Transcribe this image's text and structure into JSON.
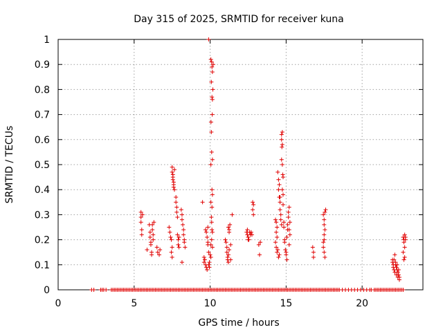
{
  "chart_data": {
    "type": "scatter",
    "title": "Day 315 of 2025, SRMTID for receiver kuna",
    "xlabel": "GPS time / hours",
    "ylabel": "SRMTID / TECUs",
    "xlim": [
      0,
      24
    ],
    "ylim": [
      0,
      1
    ],
    "xticks": [
      0,
      5,
      10,
      15,
      20
    ],
    "xtick_labels": [
      "0",
      "5",
      "10",
      "15",
      "20"
    ],
    "yticks": [
      0,
      0.1,
      0.2,
      0.3,
      0.4,
      0.5,
      0.6,
      0.7,
      0.8,
      0.9,
      1
    ],
    "ytick_labels": [
      "0",
      "0.1",
      "0.2",
      "0.3",
      "0.4",
      "0.5",
      "0.6",
      "0.7",
      "0.8",
      "0.9",
      "1"
    ],
    "grid": true,
    "marker": "+",
    "color": "#e00000",
    "zero_points_x": [
      2.2,
      2.35,
      2.8,
      2.9,
      3.0,
      3.15,
      3.5,
      3.6,
      3.7,
      3.8,
      3.9,
      4.0,
      4.1,
      4.2,
      4.3,
      4.4,
      4.5,
      4.6,
      4.7,
      4.8,
      4.9,
      5.0,
      5.1,
      5.2,
      5.3,
      5.4,
      5.5,
      5.6,
      5.7,
      5.8,
      5.9,
      6.0,
      6.1,
      6.2,
      6.3,
      6.4,
      6.5,
      6.6,
      6.7,
      6.8,
      6.9,
      7.0,
      7.1,
      7.2,
      7.3,
      7.4,
      7.5,
      7.6,
      7.7,
      7.8,
      7.9,
      8.0,
      8.1,
      8.2,
      8.3,
      8.4,
      8.5,
      8.6,
      8.7,
      8.8,
      8.9,
      9.0,
      9.1,
      9.2,
      9.3,
      9.4,
      9.5,
      9.6,
      9.7,
      9.8,
      9.9,
      10.0,
      10.1,
      10.2,
      10.3,
      10.4,
      10.5,
      10.6,
      10.7,
      10.8,
      10.9,
      11.0,
      11.1,
      11.2,
      11.3,
      11.4,
      11.5,
      11.6,
      11.7,
      11.8,
      11.9,
      12.0,
      12.1,
      12.2,
      12.3,
      12.4,
      12.5,
      12.6,
      12.7,
      12.8,
      12.9,
      13.0,
      13.1,
      13.2,
      13.3,
      13.4,
      13.5,
      13.6,
      13.7,
      13.8,
      13.9,
      14.0,
      14.1,
      14.2,
      14.3,
      14.4,
      14.5,
      14.6,
      14.7,
      14.8,
      14.9,
      15.0,
      15.1,
      15.2,
      15.3,
      15.4,
      15.5,
      15.6,
      15.7,
      15.8,
      15.9,
      16.0,
      16.1,
      16.2,
      16.3,
      16.4,
      16.5,
      16.6,
      16.7,
      16.8,
      16.9,
      17.0,
      17.1,
      17.2,
      17.3,
      17.4,
      17.5,
      17.6,
      17.7,
      17.8,
      17.9,
      18.0,
      18.1,
      18.2,
      18.3,
      18.4,
      18.5,
      18.7,
      18.9,
      19.1,
      19.3,
      19.5,
      19.7,
      19.9,
      20.1,
      20.3,
      20.5,
      20.6,
      20.8,
      20.9,
      21.0,
      21.1,
      21.2,
      21.3,
      21.4,
      21.5,
      21.6,
      21.7,
      21.8,
      21.9,
      22.0,
      22.1,
      22.2,
      22.3,
      22.4,
      22.5,
      22.6,
      22.7
    ],
    "series": [
      {
        "name": "SRMTID",
        "points": [
          [
            5.45,
            0.31
          ],
          [
            5.45,
            0.29
          ],
          [
            5.45,
            0.27
          ],
          [
            5.5,
            0.24
          ],
          [
            5.5,
            0.22
          ],
          [
            5.55,
            0.3
          ],
          [
            5.85,
            0.16
          ],
          [
            6.0,
            0.26
          ],
          [
            6.05,
            0.23
          ],
          [
            6.05,
            0.21
          ],
          [
            6.1,
            0.19
          ],
          [
            6.1,
            0.18
          ],
          [
            6.15,
            0.15
          ],
          [
            6.15,
            0.14
          ],
          [
            6.2,
            0.26
          ],
          [
            6.2,
            0.24
          ],
          [
            6.25,
            0.22
          ],
          [
            6.25,
            0.2
          ],
          [
            6.3,
            0.27
          ],
          [
            6.5,
            0.17
          ],
          [
            6.55,
            0.15
          ],
          [
            6.65,
            0.14
          ],
          [
            6.7,
            0.16
          ],
          [
            7.3,
            0.25
          ],
          [
            7.35,
            0.23
          ],
          [
            7.4,
            0.21
          ],
          [
            7.45,
            0.2
          ],
          [
            7.5,
            0.49
          ],
          [
            7.5,
            0.47
          ],
          [
            7.55,
            0.46
          ],
          [
            7.55,
            0.45
          ],
          [
            7.55,
            0.44
          ],
          [
            7.6,
            0.43
          ],
          [
            7.6,
            0.42
          ],
          [
            7.6,
            0.41
          ],
          [
            7.65,
            0.4
          ],
          [
            7.65,
            0.48
          ],
          [
            7.5,
            0.17
          ],
          [
            7.45,
            0.15
          ],
          [
            7.5,
            0.13
          ],
          [
            7.75,
            0.37
          ],
          [
            7.75,
            0.35
          ],
          [
            7.8,
            0.33
          ],
          [
            7.8,
            0.31
          ],
          [
            7.85,
            0.29
          ],
          [
            7.85,
            0.22
          ],
          [
            7.9,
            0.2
          ],
          [
            7.9,
            0.18
          ],
          [
            7.95,
            0.17
          ],
          [
            7.95,
            0.21
          ],
          [
            8.1,
            0.32
          ],
          [
            8.15,
            0.3
          ],
          [
            8.15,
            0.28
          ],
          [
            8.2,
            0.26
          ],
          [
            8.25,
            0.24
          ],
          [
            8.25,
            0.22
          ],
          [
            8.3,
            0.2
          ],
          [
            8.3,
            0.19
          ],
          [
            8.15,
            0.11
          ],
          [
            8.35,
            0.17
          ],
          [
            9.5,
            0.35
          ],
          [
            9.6,
            0.13
          ],
          [
            9.6,
            0.11
          ],
          [
            9.65,
            0.12
          ],
          [
            9.7,
            0.1
          ],
          [
            9.75,
            0.09
          ],
          [
            9.8,
            0.08
          ],
          [
            9.7,
            0.24
          ],
          [
            9.75,
            0.23
          ],
          [
            9.8,
            0.21
          ],
          [
            9.85,
            0.19
          ],
          [
            9.85,
            0.18
          ],
          [
            9.9,
            0.1
          ],
          [
            9.95,
            0.11
          ],
          [
            9.95,
            0.09
          ],
          [
            9.85,
            0.25
          ],
          [
            9.9,
            0.15
          ],
          [
            9.9,
            1.0
          ],
          [
            10.0,
            0.14
          ],
          [
            10.05,
            0.13
          ],
          [
            10.1,
            0.91
          ],
          [
            10.12,
            0.89
          ],
          [
            10.15,
            0.87
          ],
          [
            10.08,
            0.83
          ],
          [
            10.18,
            0.8
          ],
          [
            10.12,
            0.77
          ],
          [
            10.15,
            0.76
          ],
          [
            10.14,
            0.7
          ],
          [
            10.06,
            0.67
          ],
          [
            10.08,
            0.63
          ],
          [
            10.1,
            0.55
          ],
          [
            10.05,
            0.5
          ],
          [
            10.15,
            0.52
          ],
          [
            10.12,
            0.4
          ],
          [
            10.15,
            0.38
          ],
          [
            10.05,
            0.35
          ],
          [
            10.08,
            0.29
          ],
          [
            10.1,
            0.27
          ],
          [
            10.12,
            0.24
          ],
          [
            10.1,
            0.2
          ],
          [
            10.15,
            0.23
          ],
          [
            10.05,
            0.18
          ],
          [
            10.15,
            0.17
          ],
          [
            10.12,
            0.33
          ],
          [
            10.2,
            0.9
          ],
          [
            10.05,
            0.92
          ],
          [
            11.0,
            0.2
          ],
          [
            11.05,
            0.19
          ],
          [
            11.1,
            0.17
          ],
          [
            11.1,
            0.15
          ],
          [
            11.15,
            0.13
          ],
          [
            11.15,
            0.12
          ],
          [
            11.2,
            0.11
          ],
          [
            11.2,
            0.14
          ],
          [
            11.25,
            0.16
          ],
          [
            11.2,
            0.25
          ],
          [
            11.25,
            0.24
          ],
          [
            11.25,
            0.23
          ],
          [
            11.3,
            0.26
          ],
          [
            11.35,
            0.12
          ],
          [
            11.35,
            0.18
          ],
          [
            11.45,
            0.3
          ],
          [
            12.4,
            0.23
          ],
          [
            12.45,
            0.22
          ],
          [
            12.5,
            0.21
          ],
          [
            12.55,
            0.2
          ],
          [
            12.6,
            0.23
          ],
          [
            12.65,
            0.22
          ],
          [
            12.7,
            0.23
          ],
          [
            12.75,
            0.22
          ],
          [
            12.5,
            0.2
          ],
          [
            12.45,
            0.24
          ],
          [
            12.8,
            0.35
          ],
          [
            12.8,
            0.32
          ],
          [
            12.85,
            0.34
          ],
          [
            12.85,
            0.3
          ],
          [
            13.2,
            0.18
          ],
          [
            13.3,
            0.19
          ],
          [
            13.25,
            0.14
          ],
          [
            14.3,
            0.28
          ],
          [
            14.35,
            0.27
          ],
          [
            14.4,
            0.25
          ],
          [
            14.35,
            0.23
          ],
          [
            14.4,
            0.21
          ],
          [
            14.3,
            0.19
          ],
          [
            14.35,
            0.17
          ],
          [
            14.4,
            0.15
          ],
          [
            14.45,
            0.16
          ],
          [
            14.5,
            0.13
          ],
          [
            14.45,
            0.47
          ],
          [
            14.5,
            0.44
          ],
          [
            14.5,
            0.4
          ],
          [
            14.55,
            0.42
          ],
          [
            14.55,
            0.37
          ],
          [
            14.6,
            0.35
          ],
          [
            14.6,
            0.32
          ],
          [
            14.65,
            0.3
          ],
          [
            14.65,
            0.28
          ],
          [
            14.7,
            0.26
          ],
          [
            14.7,
            0.62
          ],
          [
            14.7,
            0.6
          ],
          [
            14.75,
            0.63
          ],
          [
            14.72,
            0.57
          ],
          [
            14.75,
            0.58
          ],
          [
            14.7,
            0.52
          ],
          [
            14.75,
            0.5
          ],
          [
            14.78,
            0.46
          ],
          [
            14.8,
            0.45
          ],
          [
            14.75,
            0.4
          ],
          [
            14.8,
            0.38
          ],
          [
            14.8,
            0.34
          ],
          [
            14.85,
            0.27
          ],
          [
            14.85,
            0.25
          ],
          [
            14.9,
            0.2
          ],
          [
            14.9,
            0.19
          ],
          [
            14.95,
            0.16
          ],
          [
            15.0,
            0.15
          ],
          [
            15.0,
            0.14
          ],
          [
            15.05,
            0.12
          ],
          [
            15.05,
            0.21
          ],
          [
            15.1,
            0.24
          ],
          [
            15.1,
            0.26
          ],
          [
            15.15,
            0.29
          ],
          [
            15.15,
            0.31
          ],
          [
            15.2,
            0.33
          ],
          [
            15.2,
            0.24
          ],
          [
            15.25,
            0.22
          ],
          [
            15.25,
            0.27
          ],
          [
            15.2,
            0.18
          ],
          [
            14.6,
            0.37
          ],
          [
            14.55,
            0.14
          ],
          [
            16.75,
            0.17
          ],
          [
            16.8,
            0.15
          ],
          [
            16.8,
            0.13
          ],
          [
            17.45,
            0.3
          ],
          [
            17.5,
            0.28
          ],
          [
            17.5,
            0.26
          ],
          [
            17.55,
            0.31
          ],
          [
            17.55,
            0.24
          ],
          [
            17.5,
            0.22
          ],
          [
            17.5,
            0.2
          ],
          [
            17.45,
            0.19
          ],
          [
            17.45,
            0.17
          ],
          [
            17.5,
            0.15
          ],
          [
            17.55,
            0.13
          ],
          [
            17.6,
            0.32
          ],
          [
            22.0,
            0.12
          ],
          [
            22.0,
            0.11
          ],
          [
            22.05,
            0.1
          ],
          [
            22.05,
            0.09
          ],
          [
            22.1,
            0.12
          ],
          [
            22.1,
            0.08
          ],
          [
            22.15,
            0.07
          ],
          [
            22.15,
            0.14
          ],
          [
            22.2,
            0.1
          ],
          [
            22.2,
            0.11
          ],
          [
            22.25,
            0.06
          ],
          [
            22.25,
            0.09
          ],
          [
            22.3,
            0.08
          ],
          [
            22.3,
            0.1
          ],
          [
            22.35,
            0.07
          ],
          [
            22.35,
            0.05
          ],
          [
            22.4,
            0.06
          ],
          [
            22.45,
            0.05
          ],
          [
            22.45,
            0.04
          ],
          [
            22.4,
            0.08
          ],
          [
            22.7,
            0.21
          ],
          [
            22.75,
            0.2
          ],
          [
            22.8,
            0.22
          ],
          [
            22.85,
            0.21
          ],
          [
            22.7,
            0.15
          ],
          [
            22.75,
            0.12
          ],
          [
            22.8,
            0.13
          ],
          [
            22.8,
            0.17
          ],
          [
            22.75,
            0.19
          ],
          [
            22.85,
            0.2
          ]
        ]
      }
    ]
  }
}
